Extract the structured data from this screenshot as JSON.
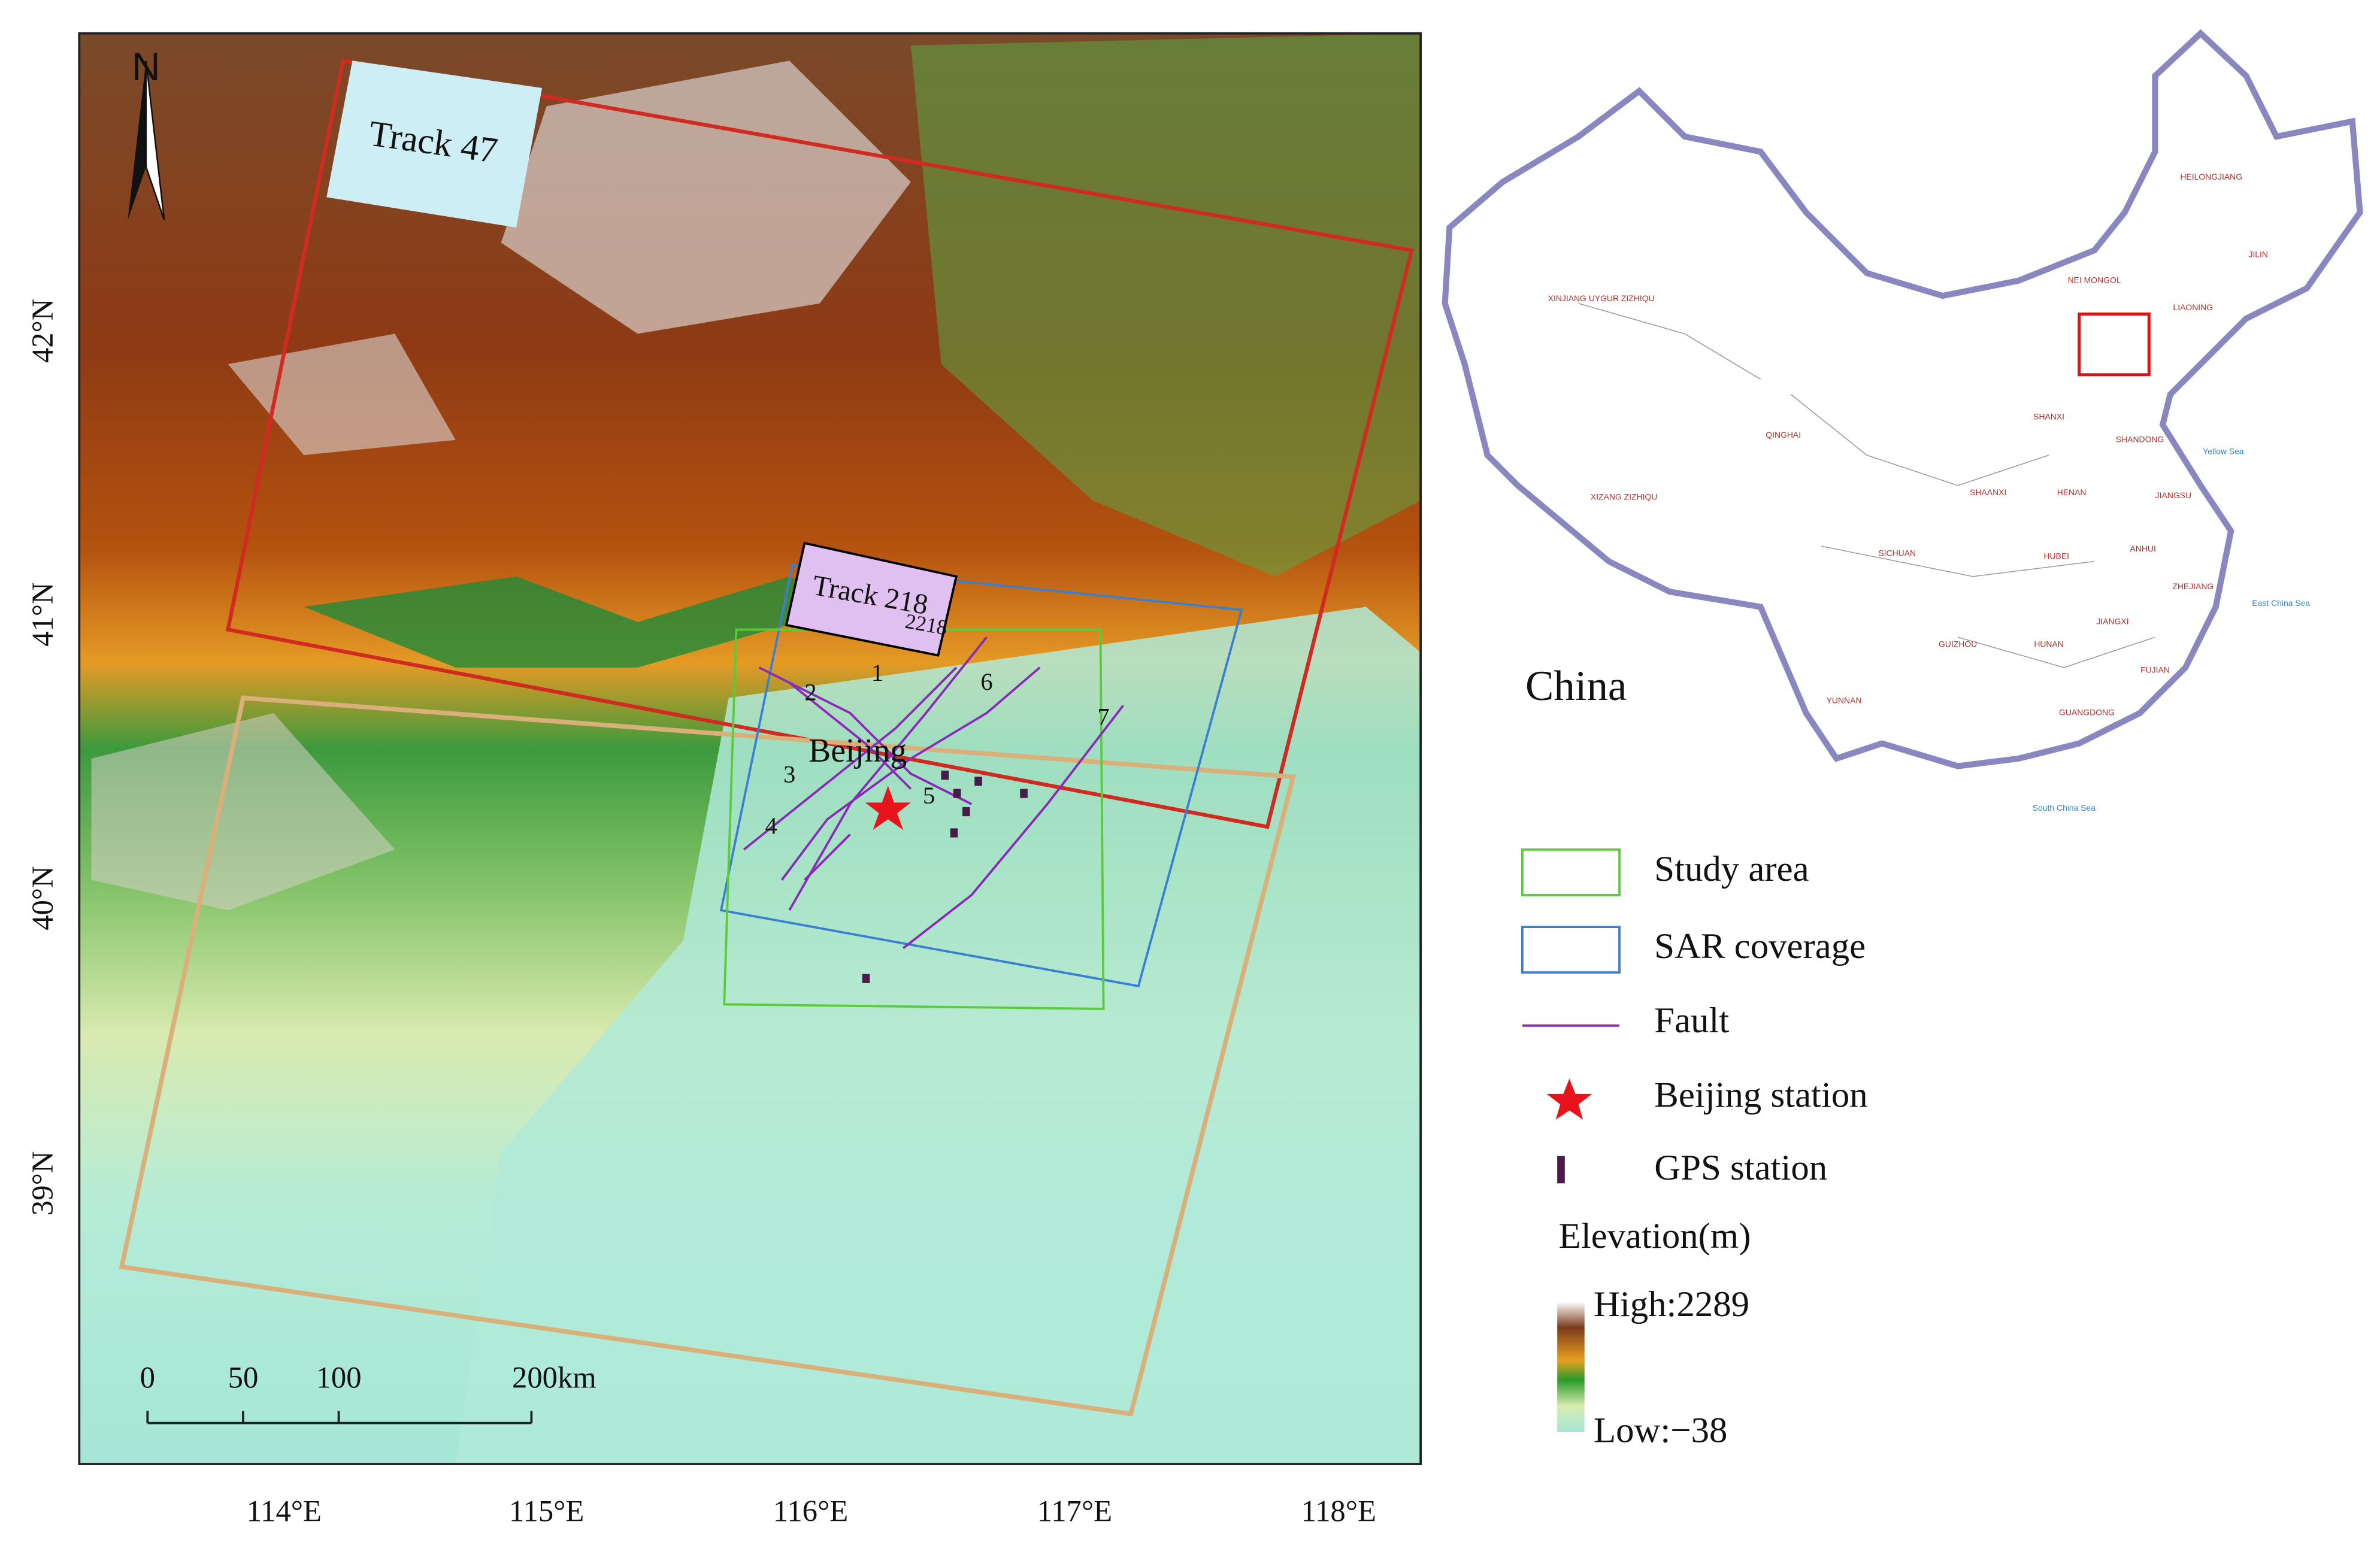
{
  "map": {
    "north": "N",
    "lat_labels": [
      "42°N",
      "41°N",
      "40°N",
      "39°N"
    ],
    "lon_labels": [
      "114°E",
      "115°E",
      "116°E",
      "117°E",
      "118°E"
    ],
    "tracks": [
      "Track 47",
      "Track 218"
    ],
    "track_id": "2218",
    "city": "Beijing",
    "fault_numbers": [
      "1",
      "2",
      "3",
      "4",
      "5",
      "6",
      "7"
    ],
    "scale_labels": [
      "0",
      "50",
      "100",
      "200km"
    ]
  },
  "inset": {
    "title": "China",
    "labels": [
      "XINJIANG UYGUR ZIZHIQU",
      "QINGHAI",
      "XIZANG ZIZHIQU",
      "SICHUAN",
      "YUNNAN",
      "GUIZHOU",
      "HUNAN",
      "HUBEI",
      "HENAN",
      "SHAANXI",
      "SHANXI",
      "SHANDONG",
      "JIANGSU",
      "ANHUI",
      "ZHEJIANG",
      "JIANGXI",
      "FUJIAN",
      "GUANGDONG",
      "HEILONGJIANG",
      "JILIN",
      "LIAONING",
      "NEI MONGOL",
      "Yellow Sea",
      "East China Sea",
      "South China Sea"
    ]
  },
  "legend": {
    "items": [
      "Study area",
      "SAR coverage",
      "Fault",
      "Beijing station",
      "GPS station"
    ],
    "elevation_title": "Elevation(m)",
    "high": "High:2289",
    "low": "Low:−38"
  }
}
